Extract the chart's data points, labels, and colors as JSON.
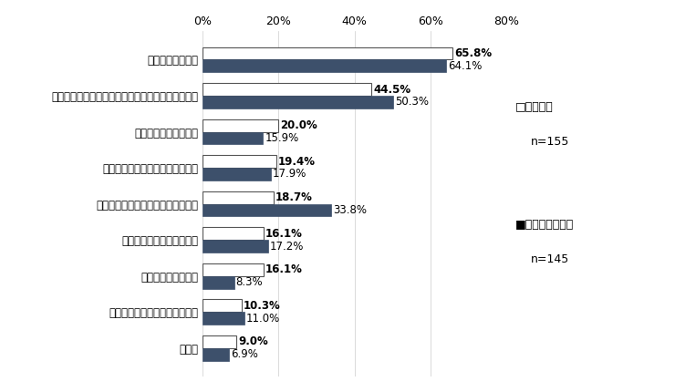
{
  "categories": [
    "情報が探しにくい",
    "知りたい情報に関するページはあるが内容が不十分",
    "検索機能の能力が低い",
    "県の魅力がアピールできていない",
    "知りたい情報に関するページがない",
    "最新の情報が載っていない",
    "デザインがよくない",
    "色合いや文字サイズが見づらい",
    "その他"
  ],
  "values_current": [
    65.8,
    44.5,
    20.0,
    19.4,
    18.7,
    16.1,
    16.1,
    10.3,
    9.0
  ],
  "values_past": [
    64.1,
    50.3,
    15.9,
    17.9,
    33.8,
    17.2,
    8.3,
    11.0,
    6.9
  ],
  "color_current": "#ffffff",
  "color_past": "#3d506b",
  "edgecolor_current": "#555555",
  "bar_height": 0.35,
  "xlim": [
    0,
    80
  ],
  "xticks": [
    0,
    20,
    40,
    60,
    80
  ],
  "xticklabels": [
    "0%",
    "20%",
    "40%",
    "60%",
    "80%"
  ],
  "legend_current_line1": "□今回調査",
  "legend_current_line2": "n=155",
  "legend_past_line1": "■平成３０年調査",
  "legend_past_line2": "n=145",
  "fontsize_label": 8.5,
  "fontsize_tick": 9,
  "fontsize_value_current": 8.5,
  "fontsize_value_past": 8.5,
  "fontsize_legend": 9,
  "background_color": "#ffffff"
}
